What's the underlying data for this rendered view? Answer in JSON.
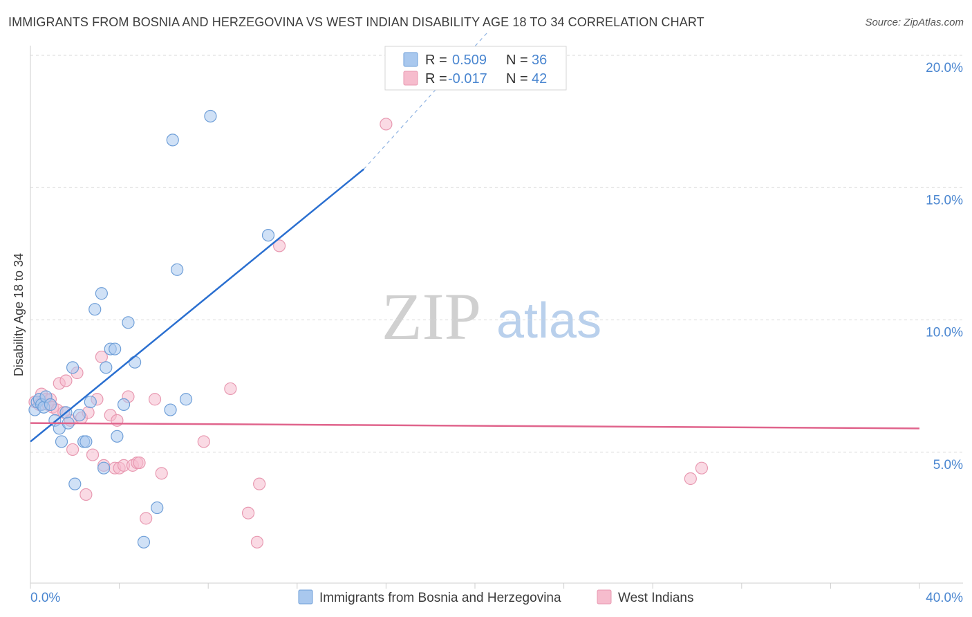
{
  "title": "IMMIGRANTS FROM BOSNIA AND HERZEGOVINA VS WEST INDIAN DISABILITY AGE 18 TO 34 CORRELATION CHART",
  "source": "Source: ZipAtlas.com",
  "watermark": {
    "zip": "ZIP",
    "atlas": "atlas"
  },
  "colors": {
    "blue_fill": "#a9c8ee",
    "blue_stroke": "#6f9fd8",
    "blue_line": "#2a6fd0",
    "pink_fill": "#f6bccd",
    "pink_stroke": "#e899b1",
    "pink_line": "#e0648c",
    "tick_text": "#4a86d0",
    "grid": "#d8d8d8"
  },
  "legend": {
    "r_label": "R =",
    "n_label": "N =",
    "rows": [
      {
        "r": "0.509",
        "n": "36",
        "series": "blue"
      },
      {
        "r": "-0.017",
        "n": "42",
        "series": "pink"
      }
    ]
  },
  "chart_data": {
    "type": "scatter",
    "title": "IMMIGRANTS FROM BOSNIA AND HERZEGOVINA VS WEST INDIAN DISABILITY AGE 18 TO 34 CORRELATION CHART",
    "xlabel": "",
    "ylabel": "Disability Age 18 to 34",
    "xlim": [
      0,
      40
    ],
    "ylim": [
      0,
      20
    ],
    "x_tick_labels": [
      "0.0%",
      "40.0%"
    ],
    "y_ticks": [
      5,
      10,
      15,
      20
    ],
    "y_tick_labels": [
      "5.0%",
      "10.0%",
      "15.0%",
      "20.0%"
    ],
    "series": [
      {
        "name": "Immigrants from Bosnia and Herzegovina",
        "color": "blue",
        "points": [
          [
            0.2,
            6.6
          ],
          [
            0.3,
            6.9
          ],
          [
            0.4,
            7.0
          ],
          [
            0.5,
            6.8
          ],
          [
            0.6,
            6.7
          ],
          [
            0.7,
            7.1
          ],
          [
            0.9,
            6.8
          ],
          [
            1.1,
            6.2
          ],
          [
            1.3,
            5.9
          ],
          [
            1.4,
            5.4
          ],
          [
            1.6,
            6.5
          ],
          [
            1.7,
            6.1
          ],
          [
            1.9,
            8.2
          ],
          [
            2.0,
            3.8
          ],
          [
            2.2,
            6.4
          ],
          [
            2.4,
            5.4
          ],
          [
            2.5,
            5.4
          ],
          [
            2.7,
            6.9
          ],
          [
            2.9,
            10.4
          ],
          [
            3.2,
            11.0
          ],
          [
            3.3,
            4.4
          ],
          [
            3.4,
            8.2
          ],
          [
            3.6,
            8.9
          ],
          [
            3.8,
            8.9
          ],
          [
            3.9,
            5.6
          ],
          [
            4.2,
            6.8
          ],
          [
            4.4,
            9.9
          ],
          [
            4.7,
            8.4
          ],
          [
            5.1,
            1.6
          ],
          [
            5.7,
            2.9
          ],
          [
            6.3,
            6.6
          ],
          [
            6.4,
            16.8
          ],
          [
            6.6,
            11.9
          ],
          [
            7.0,
            7.0
          ],
          [
            8.1,
            17.7
          ],
          [
            10.7,
            13.2
          ]
        ]
      },
      {
        "name": "West Indians",
        "color": "pink",
        "points": [
          [
            0.2,
            6.9
          ],
          [
            0.4,
            6.8
          ],
          [
            0.5,
            7.2
          ],
          [
            0.7,
            7.0
          ],
          [
            0.8,
            6.8
          ],
          [
            0.9,
            7.0
          ],
          [
            1.0,
            6.7
          ],
          [
            1.2,
            6.6
          ],
          [
            1.3,
            7.6
          ],
          [
            1.5,
            6.5
          ],
          [
            1.6,
            7.7
          ],
          [
            1.8,
            6.2
          ],
          [
            1.9,
            5.1
          ],
          [
            2.1,
            8.0
          ],
          [
            2.3,
            6.3
          ],
          [
            2.5,
            3.4
          ],
          [
            2.6,
            6.5
          ],
          [
            2.8,
            4.9
          ],
          [
            3.0,
            7.0
          ],
          [
            3.2,
            8.6
          ],
          [
            3.3,
            4.5
          ],
          [
            3.6,
            6.4
          ],
          [
            3.8,
            4.4
          ],
          [
            3.9,
            6.2
          ],
          [
            4.0,
            4.4
          ],
          [
            4.2,
            4.5
          ],
          [
            4.4,
            7.1
          ],
          [
            4.6,
            4.5
          ],
          [
            4.8,
            4.6
          ],
          [
            4.9,
            4.6
          ],
          [
            5.2,
            2.5
          ],
          [
            5.6,
            7.0
          ],
          [
            5.9,
            4.2
          ],
          [
            7.8,
            5.4
          ],
          [
            9.0,
            7.4
          ],
          [
            9.8,
            2.7
          ],
          [
            10.2,
            1.6
          ],
          [
            10.3,
            3.8
          ],
          [
            11.2,
            12.8
          ],
          [
            16.0,
            17.4
          ],
          [
            29.7,
            4.0
          ],
          [
            30.2,
            4.4
          ]
        ]
      }
    ],
    "trendlines": [
      {
        "series": "Immigrants from Bosnia and Herzegovina",
        "x": [
          0,
          15.0
        ],
        "y": [
          5.4,
          15.7
        ],
        "dashed_extension_to": [
          20.6,
          20.9
        ]
      },
      {
        "series": "West Indians",
        "x": [
          0,
          40
        ],
        "y": [
          6.1,
          5.9
        ]
      }
    ],
    "legend_position": "top-center",
    "grid": true
  },
  "bottom_legend": [
    {
      "label": "Immigrants from Bosnia and Herzegovina",
      "series": "blue"
    },
    {
      "label": "West Indians",
      "series": "pink"
    }
  ]
}
